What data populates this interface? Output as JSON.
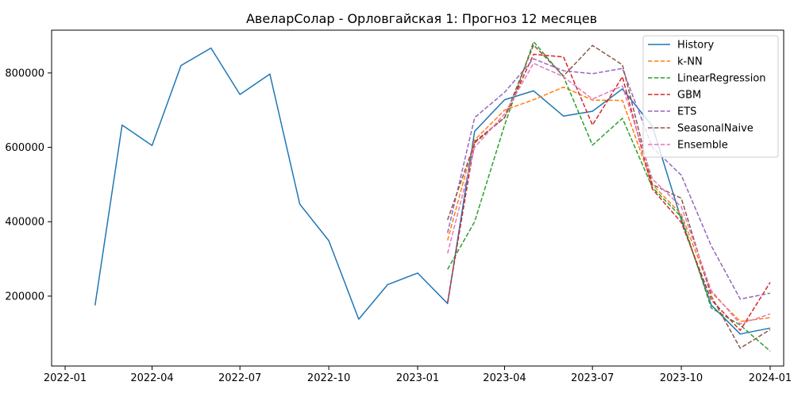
{
  "chart_data": {
    "type": "line",
    "title": "АвеларСолар - Орловгайская 1: Прогноз 12 месяцев",
    "xlabel": "",
    "ylabel": "",
    "x_axis": {
      "kind": "date",
      "range": [
        "2021-12-18",
        "2024-01-15"
      ],
      "ticks": [
        "2022-01",
        "2022-04",
        "2022-07",
        "2022-10",
        "2023-01",
        "2023-04",
        "2023-07",
        "2023-10",
        "2024-01"
      ],
      "tick_dates": [
        "2022-01-01",
        "2022-04-01",
        "2022-07-01",
        "2022-10-01",
        "2023-01-01",
        "2023-04-01",
        "2023-07-01",
        "2023-10-01",
        "2024-01-01"
      ]
    },
    "y_axis": {
      "range": [
        12000,
        915000
      ],
      "ticks": [
        200000,
        400000,
        600000,
        800000
      ],
      "tick_labels": [
        "200000",
        "400000",
        "600000",
        "800000"
      ]
    },
    "grid": false,
    "legend_position": "top-right",
    "series": [
      {
        "name": "History",
        "color": "#1f77b4",
        "style": "solid",
        "x": [
          "2022-02-01",
          "2022-03-01",
          "2022-04-01",
          "2022-05-01",
          "2022-06-01",
          "2022-07-01",
          "2022-08-01",
          "2022-09-01",
          "2022-10-01",
          "2022-11-01",
          "2022-12-01",
          "2023-01-01",
          "2023-02-01",
          "2023-03-01",
          "2023-04-01",
          "2023-05-01",
          "2023-06-01",
          "2023-07-01",
          "2023-08-01",
          "2023-09-01",
          "2023-10-01",
          "2023-11-01",
          "2023-12-01",
          "2024-01-01"
        ],
        "y": [
          175000,
          660000,
          605000,
          820000,
          867000,
          742000,
          797000,
          447000,
          349000,
          138000,
          231000,
          262000,
          180000,
          643000,
          728000,
          752000,
          684000,
          697000,
          757000,
          657000,
          405000,
          176000,
          98000,
          114000
        ]
      },
      {
        "name": "k-NN",
        "color": "#ff7f0e",
        "style": "dashed",
        "x": [
          "2023-02-01",
          "2023-03-01",
          "2023-04-01",
          "2023-05-01",
          "2023-06-01",
          "2023-07-01",
          "2023-08-01",
          "2023-09-01",
          "2023-10-01",
          "2023-11-01",
          "2023-12-01",
          "2024-01-01"
        ],
        "y": [
          350000,
          620000,
          700000,
          728000,
          762000,
          727000,
          726000,
          500000,
          420000,
          210000,
          132000,
          142000
        ]
      },
      {
        "name": "LinearRegression",
        "color": "#2ca02c",
        "style": "dashed",
        "x": [
          "2023-02-01",
          "2023-03-01",
          "2023-04-01",
          "2023-05-01",
          "2023-06-01",
          "2023-07-01",
          "2023-08-01",
          "2023-09-01",
          "2023-10-01",
          "2023-11-01",
          "2023-12-01",
          "2024-01-01"
        ],
        "y": [
          272000,
          400000,
          660000,
          884000,
          790000,
          606000,
          678000,
          492000,
          413000,
          168000,
          122000,
          52000
        ]
      },
      {
        "name": "GBM",
        "color": "#d62728",
        "style": "dashed",
        "x": [
          "2023-02-01",
          "2023-03-01",
          "2023-04-01",
          "2023-05-01",
          "2023-06-01",
          "2023-07-01",
          "2023-08-01",
          "2023-09-01",
          "2023-10-01",
          "2023-11-01",
          "2023-12-01",
          "2024-01-01"
        ],
        "y": [
          183000,
          615000,
          680000,
          850000,
          843000,
          660000,
          790000,
          488000,
          398000,
          190000,
          108000,
          237000
        ]
      },
      {
        "name": "ETS",
        "color": "#9467bd",
        "style": "dashed",
        "x": [
          "2023-02-01",
          "2023-03-01",
          "2023-04-01",
          "2023-05-01",
          "2023-06-01",
          "2023-07-01",
          "2023-08-01",
          "2023-09-01",
          "2023-10-01",
          "2023-11-01",
          "2023-12-01",
          "2024-01-01"
        ],
        "y": [
          370000,
          680000,
          748000,
          838000,
          806000,
          798000,
          812000,
          600000,
          525000,
          335000,
          192000,
          208000
        ]
      },
      {
        "name": "SeasonalNaive",
        "color": "#8c564b",
        "style": "dashed",
        "x": [
          "2023-02-01",
          "2023-03-01",
          "2023-04-01",
          "2023-05-01",
          "2023-06-01",
          "2023-07-01",
          "2023-08-01",
          "2023-09-01",
          "2023-10-01",
          "2023-11-01",
          "2023-12-01",
          "2024-01-01"
        ],
        "y": [
          405000,
          612000,
          680000,
          875000,
          792000,
          874000,
          822000,
          500000,
          463000,
          200000,
          60000,
          110000
        ]
      },
      {
        "name": "Ensemble",
        "color": "#e377c2",
        "style": "dashed",
        "x": [
          "2023-02-01",
          "2023-03-01",
          "2023-04-01",
          "2023-05-01",
          "2023-06-01",
          "2023-07-01",
          "2023-08-01",
          "2023-09-01",
          "2023-10-01",
          "2023-11-01",
          "2023-12-01",
          "2024-01-01"
        ],
        "y": [
          315000,
          600000,
          690000,
          826000,
          790000,
          730000,
          765000,
          515000,
          440000,
          215000,
          125000,
          152000
        ]
      }
    ]
  }
}
